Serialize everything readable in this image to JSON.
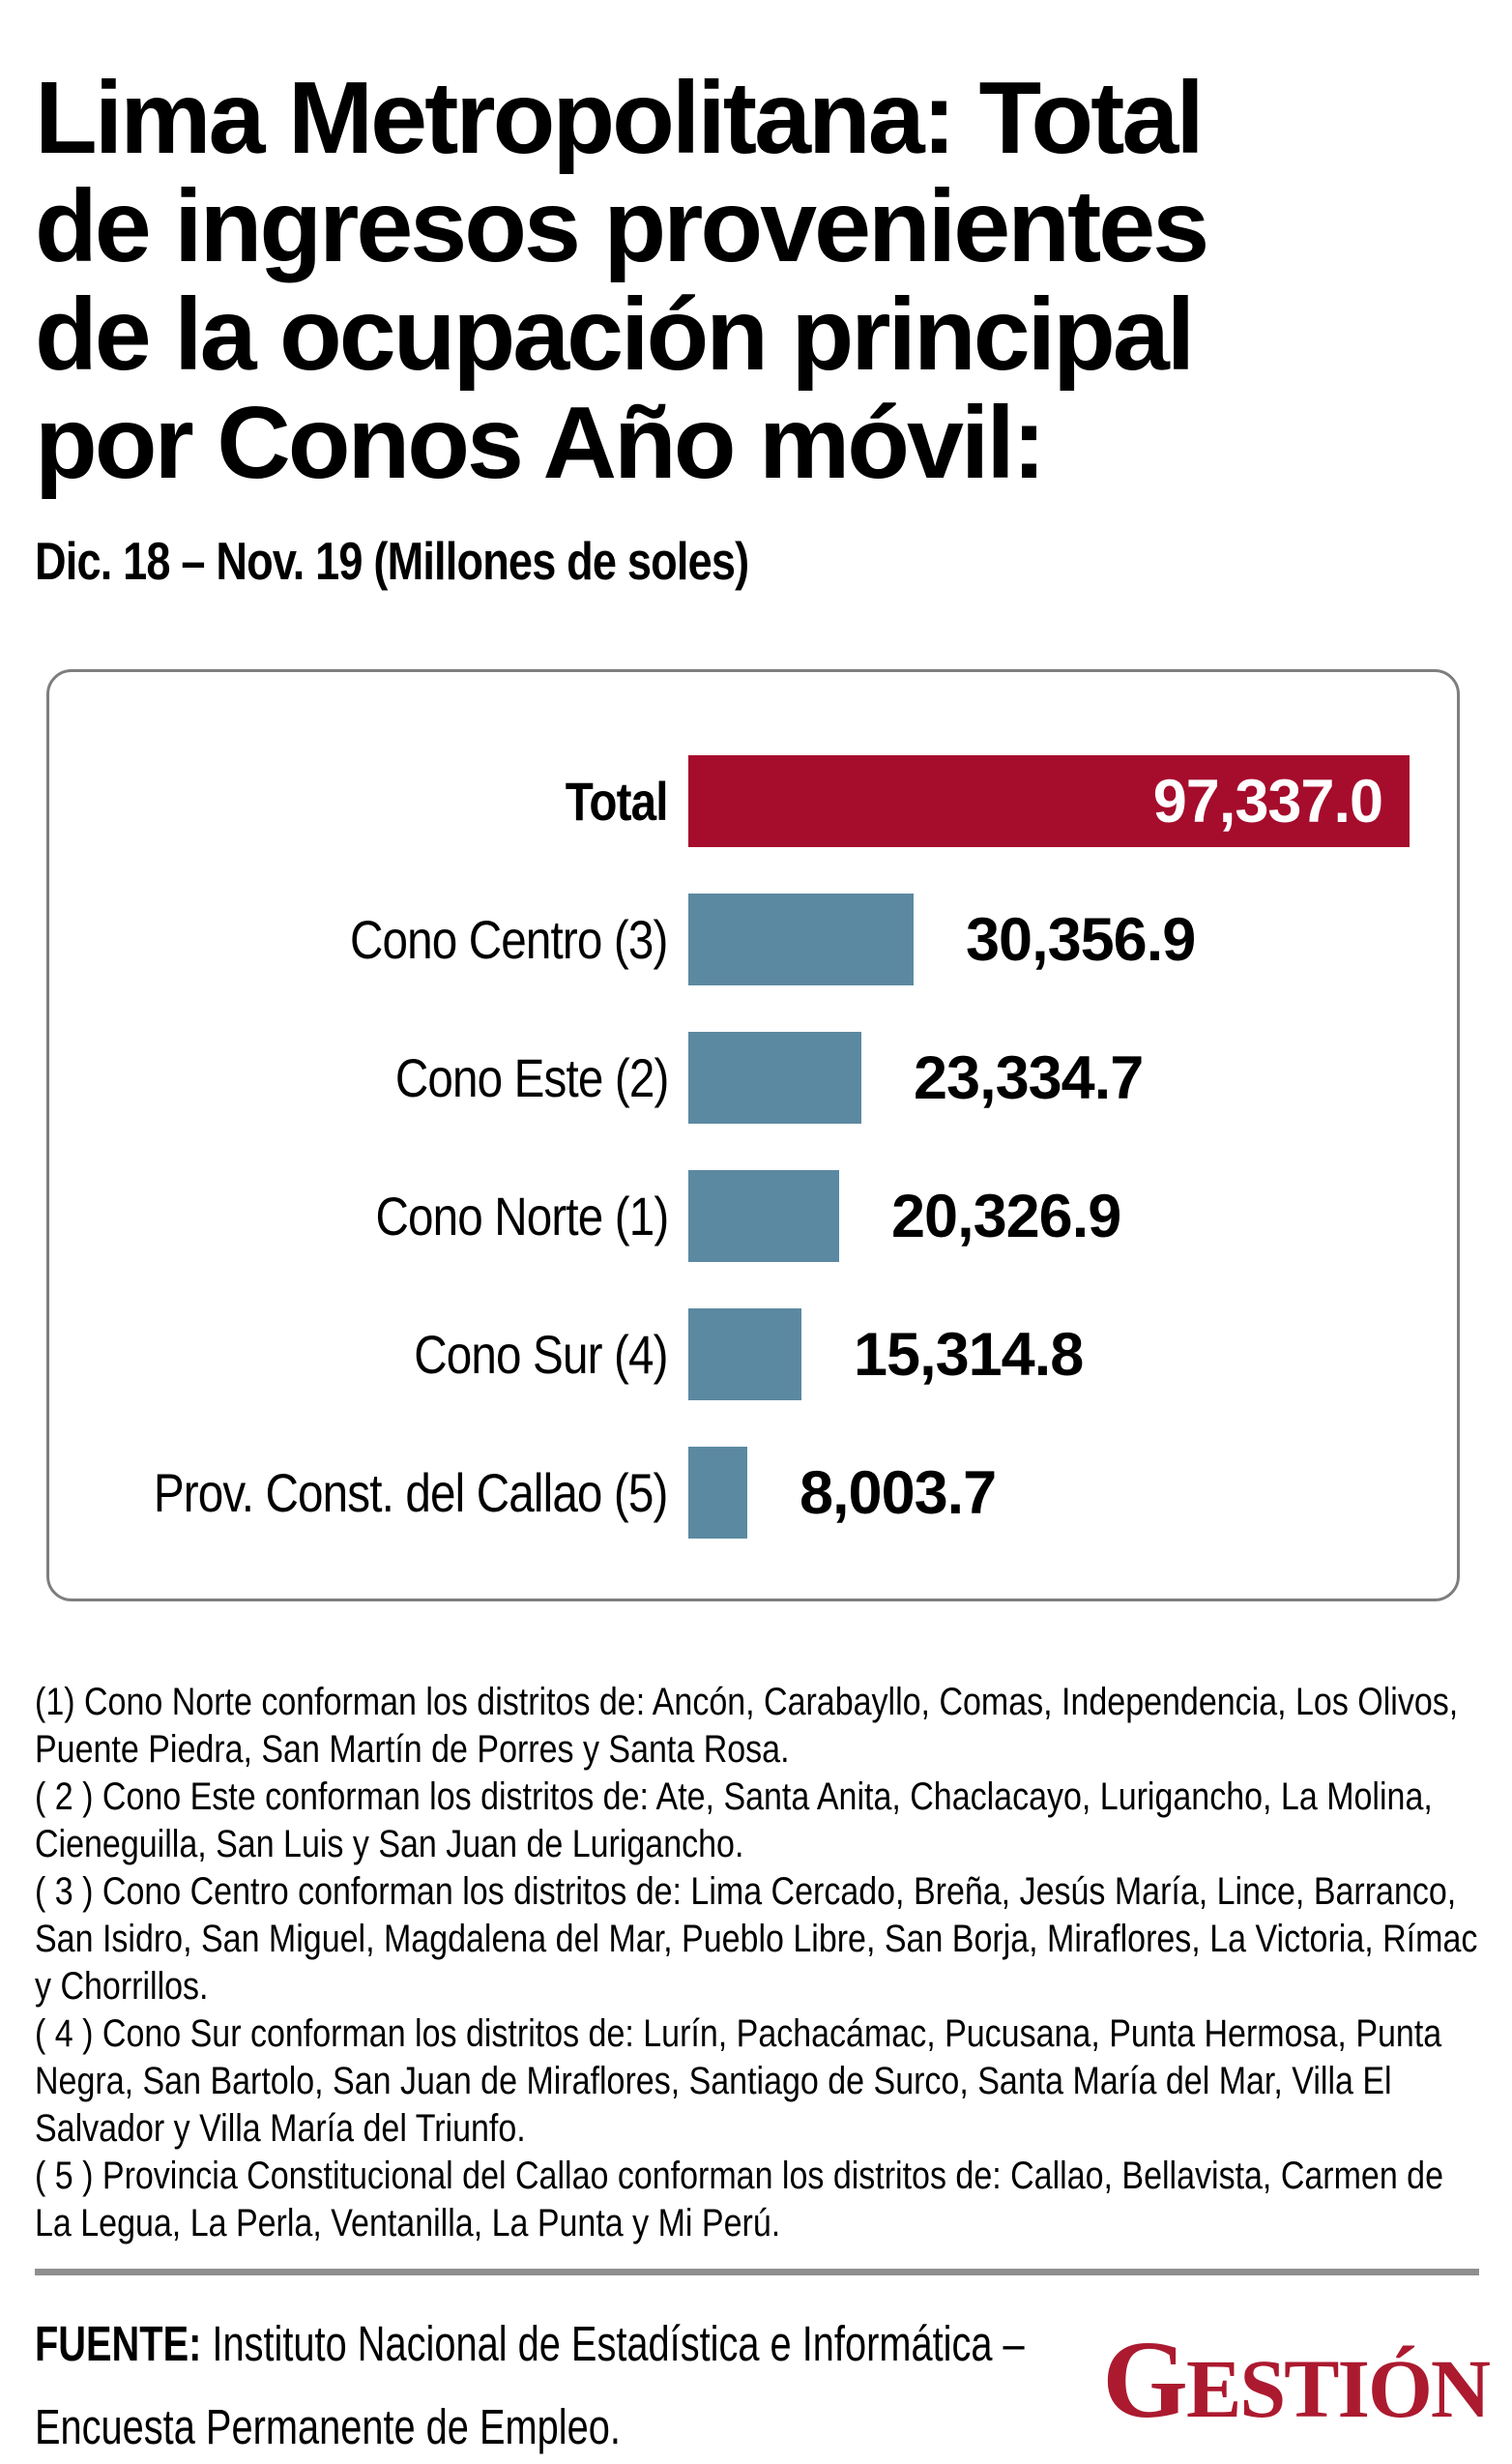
{
  "header": {
    "title_lines": [
      "Lima Metropolitana: Total",
      "de ingresos provenientes",
      "de la ocupación principal",
      "por Conos Año móvil:"
    ],
    "subtitle": "Dic. 18 – Nov. 19 (Millones de soles)"
  },
  "chart_data": {
    "type": "bar",
    "orientation": "horizontal",
    "title": "Lima Metropolitana: Total de ingresos provenientes de la ocupación principal por Conos Año móvil: Dic. 18 – Nov. 19 (Millones de soles)",
    "unit": "Millones de soles",
    "categories": [
      "Total",
      "Cono Centro (3)",
      "Cono Este (2)",
      "Cono Norte (1)",
      "Cono Sur (4)",
      "Prov. Const. del Callao (5)"
    ],
    "values": [
      97337.0,
      30356.9,
      23334.7,
      20326.9,
      15314.8,
      8003.7
    ],
    "value_labels": [
      "97,337.0",
      "30,356.9",
      "23,334.7",
      "20,326.9",
      "15,314.8",
      "8,003.7"
    ],
    "xmax": 97337.0,
    "highlight_index": 0,
    "grid": false,
    "legend": false,
    "colors": {
      "highlight_bar": "#A60C2C",
      "bar": "#5B89A1",
      "value_text": "#000000",
      "highlight_value_text": "#FFFFFF"
    }
  },
  "footnotes": [
    "(1) Cono Norte conforman los distritos de: Ancón, Carabayllo, Comas, Independencia, Los Olivos, Puente Piedra, San Martín de Porres y Santa Rosa.",
    "( 2 ) Cono Este conforman los distritos de: Ate, Santa Anita, Chaclacayo, Lurigancho, La Molina, Cieneguilla, San Luis y San Juan de Lurigancho.",
    "( 3 ) Cono Centro conforman los distritos de: Lima Cercado, Breña, Jesús María, Lince, Barranco, San Isidro, San Miguel, Magdalena del Mar, Pueblo Libre, San Borja, Miraflores, La Victoria, Rímac y Chorrillos.",
    "( 4 ) Cono Sur conforman los distritos de: Lurín, Pachacámac, Pucusana, Punta Hermosa, Punta Negra, San Bartolo, San Juan de Miraflores, Santiago de Surco, Santa María del Mar, Villa El Salvador y Villa María del Triunfo.",
    "( 5 ) Provincia Constitucional del Callao conforman los distritos de: Callao, Bellavista, Carmen de La Legua, La Perla, Ventanilla, La Punta y Mi Perú."
  ],
  "source": {
    "label": "FUENTE:",
    "line1": "Instituto Nacional de Estadística e Informática –",
    "line2": "Encuesta Permanente de Empleo.",
    "logo_text": "GESTIÓN",
    "logo_color": "#AC1A2F"
  }
}
